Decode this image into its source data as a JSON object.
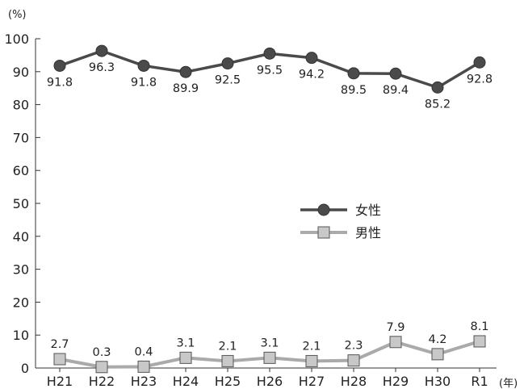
{
  "chart_data": {
    "type": "line",
    "y_unit_label": "(%)",
    "x_unit_label": "(年)",
    "categories": [
      "H21",
      "H22",
      "H23",
      "H24",
      "H25",
      "H26",
      "H27",
      "H28",
      "H29",
      "H30",
      "R1"
    ],
    "ylim": [
      0,
      100
    ],
    "yticks": [
      0,
      10,
      20,
      30,
      40,
      50,
      60,
      70,
      80,
      90,
      100
    ],
    "grid": false,
    "legend_position": "center-right",
    "series": [
      {
        "name": "女性",
        "marker": "circle",
        "color": "#4a4a4a",
        "values": [
          91.8,
          96.3,
          91.8,
          89.9,
          92.5,
          95.5,
          94.2,
          89.5,
          89.4,
          85.2,
          92.8
        ],
        "labels": [
          "91.8",
          "96.3",
          "91.8",
          "89.9",
          "92.5",
          "95.5",
          "94.2",
          "89.5",
          "89.4",
          "85.2",
          "92.8"
        ]
      },
      {
        "name": "男性",
        "marker": "square",
        "color": "#aaaaaa",
        "marker_fill": "#c8c8c8",
        "values": [
          2.7,
          0.3,
          0.4,
          3.1,
          2.1,
          3.1,
          2.1,
          2.3,
          7.9,
          4.2,
          8.1
        ],
        "labels": [
          "2.7",
          "0.3",
          "0.4",
          "3.1",
          "2.1",
          "3.1",
          "2.1",
          "2.3",
          "7.9",
          "4.2",
          "8.1"
        ]
      }
    ]
  }
}
